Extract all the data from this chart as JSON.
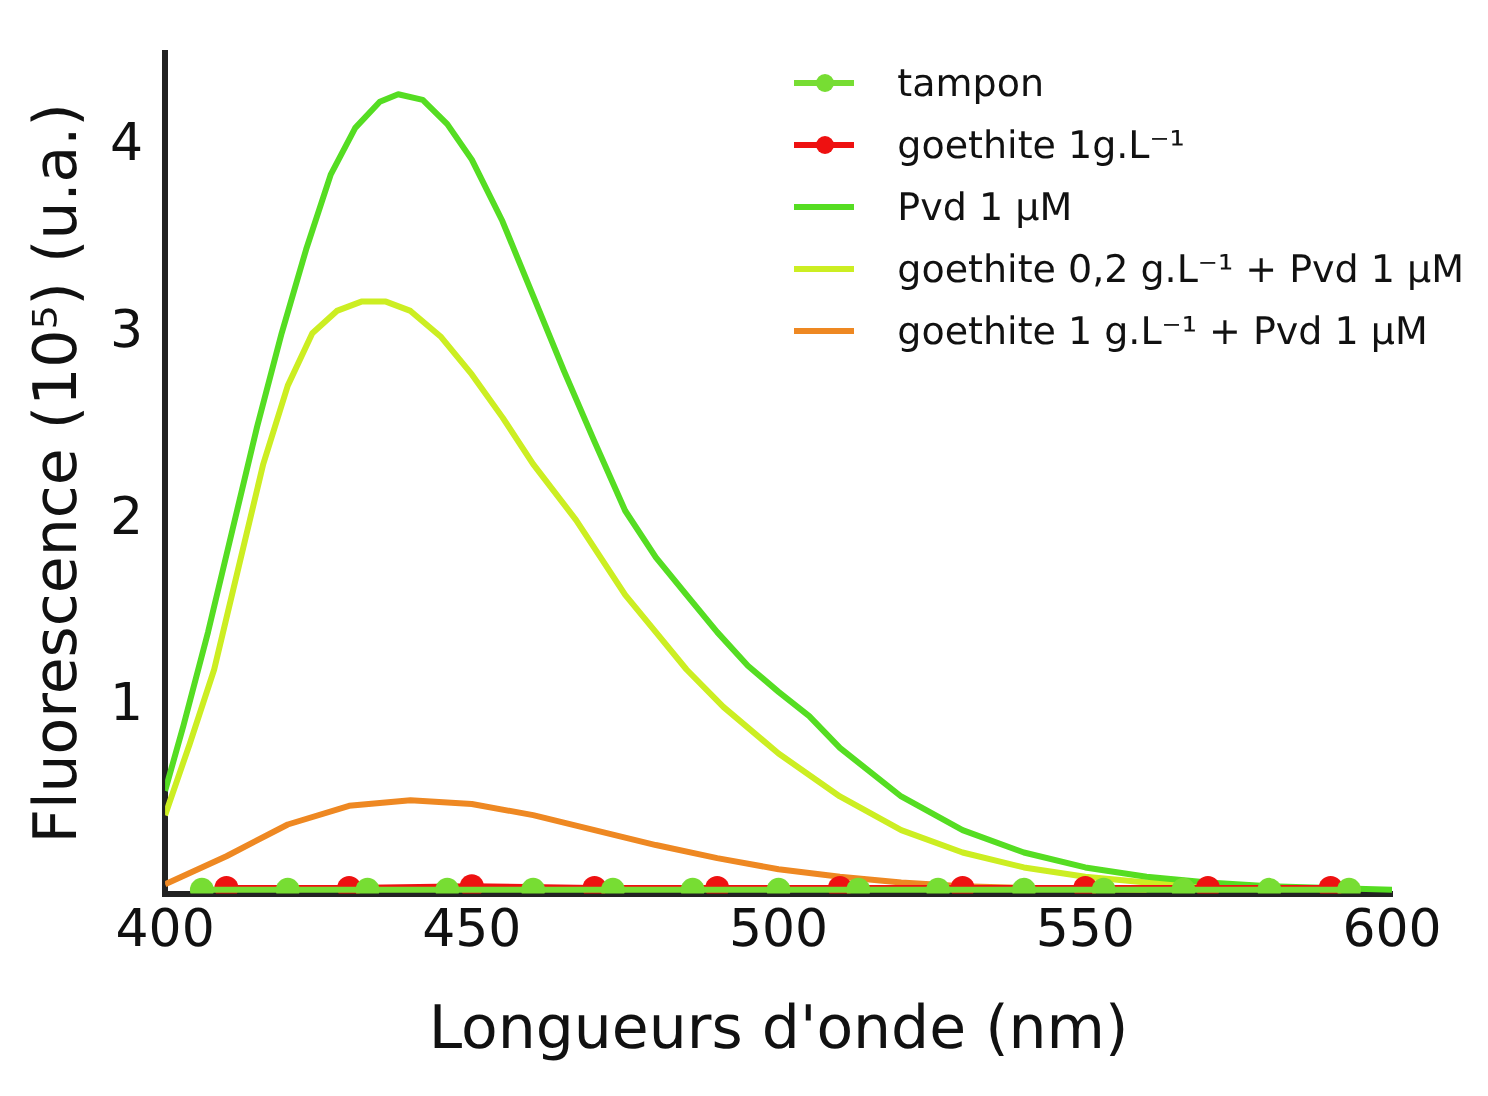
{
  "chart_data": {
    "type": "line",
    "xlabel": "Longueurs d'onde (nm)",
    "ylabel": "Fluorescence (10⁵) (u.a.)",
    "xlim": [
      400,
      600
    ],
    "xticks": [
      400,
      450,
      500,
      550,
      600
    ],
    "ylim": [
      0,
      4.5
    ],
    "yticks": [
      1,
      2,
      3,
      4
    ],
    "grid": false,
    "legend": "top right",
    "series": [
      {
        "name": "tampon",
        "color": "#77dd33",
        "marker": "circle",
        "x": [
          406,
          420,
          433,
          446,
          460,
          473,
          486,
          500,
          513,
          526,
          540,
          553,
          566,
          580,
          593
        ],
        "values": [
          0.02,
          0.02,
          0.02,
          0.02,
          0.02,
          0.02,
          0.02,
          0.02,
          0.02,
          0.02,
          0.02,
          0.02,
          0.02,
          0.02,
          0.02
        ]
      },
      {
        "name": "goethite 1g.L⁻¹",
        "color": "#ee1111",
        "marker": "circle",
        "x": [
          410,
          430,
          450,
          470,
          490,
          510,
          530,
          550,
          570,
          590
        ],
        "values": [
          0.03,
          0.03,
          0.04,
          0.03,
          0.03,
          0.03,
          0.03,
          0.03,
          0.03,
          0.03
        ]
      },
      {
        "name": "Pvd 1 µM",
        "color": "#55dd22",
        "marker": "none",
        "x": [
          400,
          403,
          407,
          411,
          415,
          419,
          423,
          427,
          431,
          435,
          438,
          442,
          446,
          450,
          455,
          460,
          465,
          470,
          475,
          480,
          485,
          490,
          495,
          500,
          505,
          510,
          520,
          530,
          540,
          550,
          560,
          570,
          580,
          590,
          600
        ],
        "values": [
          0.55,
          0.9,
          1.4,
          1.95,
          2.5,
          3.0,
          3.45,
          3.85,
          4.1,
          4.24,
          4.28,
          4.25,
          4.12,
          3.93,
          3.6,
          3.2,
          2.8,
          2.42,
          2.05,
          1.8,
          1.6,
          1.4,
          1.22,
          1.08,
          0.95,
          0.78,
          0.52,
          0.34,
          0.22,
          0.14,
          0.09,
          0.06,
          0.04,
          0.03,
          0.02
        ]
      },
      {
        "name": "goethite 0,2 g.L⁻¹ + Pvd 1 µM",
        "color": "#ccee22",
        "marker": "none",
        "x": [
          400,
          404,
          408,
          412,
          416,
          420,
          424,
          428,
          432,
          436,
          440,
          445,
          450,
          455,
          460,
          467,
          475,
          480,
          485,
          491,
          500,
          510,
          520,
          530,
          540,
          550,
          560,
          570,
          580
        ],
        "values": [
          0.42,
          0.8,
          1.2,
          1.75,
          2.3,
          2.72,
          3.0,
          3.12,
          3.17,
          3.17,
          3.12,
          2.98,
          2.78,
          2.55,
          2.3,
          2.0,
          1.6,
          1.4,
          1.2,
          1.0,
          0.75,
          0.52,
          0.34,
          0.22,
          0.14,
          0.09,
          0.06,
          0.04,
          0.03
        ]
      },
      {
        "name": "goethite 1 g.L⁻¹ + Pvd 1 µM",
        "color": "#ee8822",
        "marker": "none",
        "x": [
          400,
          410,
          420,
          430,
          440,
          450,
          460,
          470,
          480,
          490,
          500,
          510,
          520,
          530,
          540,
          560
        ],
        "values": [
          0.05,
          0.2,
          0.37,
          0.47,
          0.5,
          0.48,
          0.42,
          0.34,
          0.26,
          0.19,
          0.13,
          0.09,
          0.06,
          0.04,
          0.03,
          0.02
        ]
      }
    ]
  }
}
